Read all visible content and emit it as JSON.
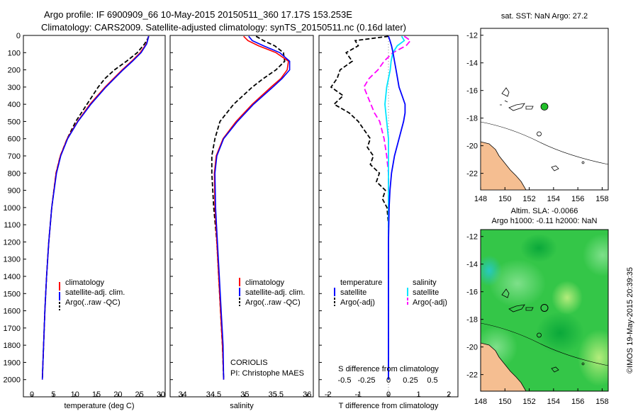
{
  "title_line1": "Argo profile: IF 6900909_66 10-May-2015 20150511_360 17.17S 153.253E",
  "title_line2": "Climatology: CARS2009. Satellite-adjusted climatology: synTS_20150511.nc (0.16d later)",
  "sst_title": "sat. SST: NaN Argo: 27.2",
  "sla_title1": "Altim. SLA: -0.0066",
  "sla_title2": "Argo h1000: -0.11 h2000: NaN",
  "credit": "©IMOS 19-May-2015 20:39:35",
  "coriolis": "CORIOLIS",
  "pi": "PI: Christophe MAES",
  "colors": {
    "climatology": "#ff0000",
    "satellite": "#0000ff",
    "argo": "#000000",
    "sal_satellite": "#00e5ff",
    "sal_argo": "#ff00ff",
    "land": "#f5be91",
    "argo_dot": "#22c02a"
  },
  "legend": {
    "climatology": "climatology",
    "satellite": "satellite-adj. clim.",
    "argo": "Argo(..raw -QC)"
  },
  "diff_legend": {
    "temperature": "temperature",
    "salinity": "salinity",
    "satellite": "satellite",
    "argo": "Argo(-adj)"
  },
  "chart_data": [
    {
      "type": "line",
      "id": "temperature",
      "xlabel": "temperature (deg C)",
      "ylabel": "",
      "xlim": [
        -2,
        31
      ],
      "ylim": [
        2100,
        0
      ],
      "xticks": [
        0,
        5,
        10,
        15,
        20,
        25,
        30
      ],
      "yticks": [
        0,
        100,
        200,
        300,
        400,
        500,
        600,
        700,
        800,
        900,
        1000,
        1100,
        1200,
        1300,
        1400,
        1500,
        1600,
        1700,
        1800,
        1900,
        2000
      ],
      "series": [
        {
          "name": "climatology",
          "depth": [
            5,
            20,
            50,
            100,
            150,
            200,
            250,
            300,
            400,
            500,
            600,
            700,
            800,
            1000,
            1200,
            1400,
            1600,
            1800,
            2000
          ],
          "values": [
            27.1,
            27.0,
            26.6,
            25.2,
            23.2,
            21.0,
            19.0,
            17.0,
            13.5,
            10.6,
            8.2,
            6.6,
            5.6,
            4.6,
            3.9,
            3.4,
            3.0,
            2.7,
            2.4
          ]
        },
        {
          "name": "satellite",
          "depth": [
            5,
            20,
            50,
            100,
            150,
            200,
            250,
            300,
            400,
            500,
            600,
            700,
            800,
            1000,
            1200,
            1400,
            1600,
            1800,
            2000
          ],
          "values": [
            27.1,
            27.0,
            26.7,
            25.4,
            23.4,
            21.2,
            19.2,
            17.2,
            13.7,
            10.7,
            8.3,
            6.7,
            5.7,
            4.6,
            3.9,
            3.4,
            3.0,
            2.7,
            2.4
          ]
        },
        {
          "name": "argo",
          "depth": [
            5,
            20,
            50,
            100,
            150,
            200,
            250,
            300,
            400,
            500,
            600,
            700,
            800,
            1000,
            1200,
            1400,
            1600,
            1800,
            2000
          ],
          "values": [
            27.2,
            26.9,
            26.2,
            24.5,
            22.0,
            19.2,
            17.0,
            15.4,
            12.8,
            10.2,
            8.2,
            6.6,
            5.6,
            4.6,
            3.9,
            3.4,
            3.0,
            2.7,
            2.4
          ]
        }
      ]
    },
    {
      "type": "line",
      "id": "salinity",
      "xlabel": "salinity",
      "ylabel": "",
      "xlim": [
        33.8,
        36.1
      ],
      "ylim": [
        2100,
        0
      ],
      "xticks": [
        34,
        34.5,
        35,
        35.5,
        36
      ],
      "xtick_labels": [
        "34",
        "34.5",
        "35",
        "35.5",
        "36"
      ],
      "series": [
        {
          "name": "climatology",
          "depth": [
            5,
            30,
            60,
            100,
            150,
            200,
            250,
            300,
            400,
            500,
            600,
            700,
            800,
            1000,
            1200,
            1400,
            1600,
            1800,
            2000
          ],
          "values": [
            34.98,
            35.05,
            35.22,
            35.5,
            35.7,
            35.68,
            35.58,
            35.42,
            35.12,
            34.86,
            34.65,
            34.54,
            34.51,
            34.52,
            34.55,
            34.58,
            34.61,
            34.64,
            34.66
          ]
        },
        {
          "name": "satellite",
          "depth": [
            5,
            30,
            60,
            100,
            150,
            200,
            250,
            300,
            400,
            500,
            600,
            700,
            800,
            1000,
            1200,
            1400,
            1600,
            1800,
            2000
          ],
          "values": [
            35.06,
            35.12,
            35.3,
            35.56,
            35.72,
            35.72,
            35.6,
            35.45,
            35.14,
            34.88,
            34.66,
            34.55,
            34.52,
            34.53,
            34.56,
            34.59,
            34.62,
            34.65,
            34.66
          ]
        },
        {
          "name": "argo",
          "depth": [
            5,
            30,
            60,
            100,
            150,
            200,
            250,
            300,
            400,
            500,
            600,
            700,
            800,
            1000,
            1200,
            1400,
            1600,
            1800,
            2000
          ],
          "values": [
            35.18,
            35.3,
            35.48,
            35.62,
            35.64,
            35.5,
            35.3,
            35.12,
            34.82,
            34.6,
            34.52,
            34.47,
            34.47,
            34.5,
            34.55,
            34.58,
            34.61,
            34.64,
            34.66
          ]
        }
      ]
    },
    {
      "type": "line",
      "id": "difference",
      "xlabel": "T difference from climatology",
      "xlabel_top": "S difference from climatology",
      "xlim": [
        -2.3,
        2.3
      ],
      "ylim": [
        2100,
        0
      ],
      "xticks": [
        -2,
        -1,
        0,
        1,
        2
      ],
      "s_ticks": [
        -0.5,
        -0.25,
        0,
        0.25,
        0.5
      ],
      "s_tick_labels": [
        "-0.5",
        "-0.25",
        "0",
        "0.25",
        "0.5"
      ],
      "series": [
        {
          "name": "T satellite",
          "depth": [
            5,
            30,
            60,
            100,
            150,
            200,
            250,
            300,
            350,
            400,
            450,
            500,
            600,
            700,
            800,
            900,
            1000,
            1200,
            1500,
            2000
          ],
          "values": [
            0.0,
            0.05,
            0.1,
            0.15,
            0.2,
            0.25,
            0.3,
            0.35,
            0.45,
            0.55,
            0.55,
            0.5,
            0.35,
            0.2,
            0.1,
            0.05,
            0.02,
            0.0,
            0.0,
            0.0
          ]
        },
        {
          "name": "T argo",
          "depth": [
            5,
            30,
            60,
            100,
            150,
            200,
            250,
            300,
            350,
            400,
            450,
            500,
            550,
            600,
            650,
            700,
            750,
            800,
            850,
            900,
            950,
            1000,
            1100,
            1200,
            1500,
            2000
          ],
          "values": [
            0.0,
            -1.1,
            -1.0,
            -1.4,
            -1.2,
            -1.6,
            -1.7,
            -1.9,
            -1.5,
            -1.8,
            -1.3,
            -1.0,
            -0.8,
            -0.6,
            -0.7,
            -0.5,
            -0.6,
            -0.3,
            -0.4,
            -0.1,
            -0.2,
            -0.05,
            0.0,
            0.0,
            0.0,
            0.0
          ]
        },
        {
          "name": "S satellite",
          "depth": [
            5,
            30,
            60,
            100,
            150,
            200,
            250,
            300,
            400,
            500,
            600,
            700,
            800,
            1000,
            1200,
            1500,
            2000
          ],
          "values": [
            0.15,
            0.18,
            0.1,
            0.05,
            0.03,
            0.02,
            0.0,
            -0.02,
            -0.04,
            -0.02,
            0.0,
            0.0,
            0.0,
            0.0,
            0.0,
            0.0,
            0.0
          ]
        },
        {
          "name": "S argo",
          "depth": [
            5,
            30,
            60,
            100,
            150,
            200,
            250,
            300,
            350,
            400,
            450,
            500,
            600,
            700,
            800,
            1000,
            1200,
            1500,
            2000
          ],
          "values": [
            0.18,
            0.25,
            0.2,
            0.05,
            -0.05,
            -0.12,
            -0.22,
            -0.28,
            -0.24,
            -0.2,
            -0.16,
            -0.1,
            -0.05,
            -0.02,
            0.0,
            0.0,
            0.0,
            0.0,
            0.0
          ]
        }
      ]
    },
    {
      "type": "map",
      "id": "sst_map",
      "xlim": [
        148,
        158.5
      ],
      "ylim": [
        -23.2,
        -11.5
      ],
      "xticks": [
        148,
        150,
        152,
        154,
        156,
        158
      ],
      "yticks": [
        -12,
        -14,
        -16,
        -18,
        -20,
        -22
      ],
      "argo_position": {
        "lon": 153.25,
        "lat": -17.17
      }
    },
    {
      "type": "heatmap",
      "id": "sla_map",
      "xlim": [
        148,
        158.5
      ],
      "ylim": [
        -23.2,
        -11.5
      ],
      "xticks": [
        148,
        150,
        152,
        154,
        156,
        158
      ],
      "yticks": [
        -12,
        -14,
        -16,
        -18,
        -20,
        -22
      ],
      "argo_position": {
        "lon": 153.25,
        "lat": -17.17
      }
    }
  ]
}
